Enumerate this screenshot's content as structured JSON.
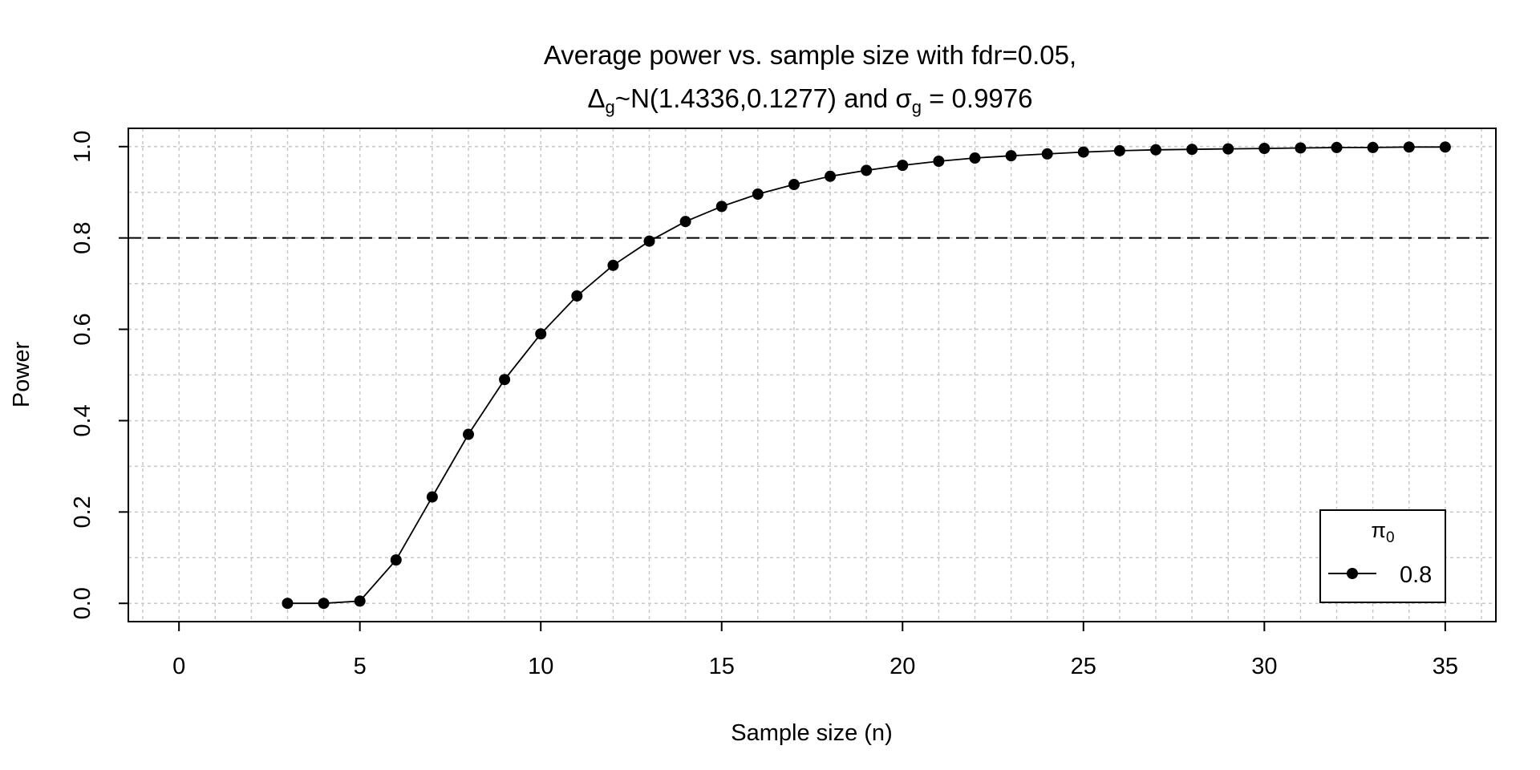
{
  "chart_data": {
    "type": "line",
    "title_line1": "Average power vs. sample size with fdr=0.05,",
    "title_line2": {
      "delta": "Δ",
      "delta_sub": "g",
      "mid": "~N(1.4336,0.1277) and ",
      "sigma": "σ",
      "sigma_sub": "g",
      "tail": " = 0.9976"
    },
    "xlabel": "Sample size (n)",
    "ylabel": "Power",
    "xlim": [
      -1.4,
      36.4
    ],
    "ylim": [
      -0.04,
      1.04
    ],
    "x_ticks": [
      "0",
      "5",
      "10",
      "15",
      "20",
      "25",
      "30",
      "35"
    ],
    "y_ticks": [
      "0.0",
      "0.2",
      "0.4",
      "0.6",
      "0.8",
      "1.0"
    ],
    "grid": true,
    "reference_line": {
      "y": 0.8,
      "style": "dashed"
    },
    "series": [
      {
        "name": "0.8",
        "x": [
          3,
          4,
          5,
          6,
          7,
          8,
          9,
          10,
          11,
          12,
          13,
          14,
          15,
          16,
          17,
          18,
          19,
          20,
          21,
          22,
          23,
          24,
          25,
          26,
          27,
          28,
          29,
          30,
          31,
          32,
          33,
          34,
          35
        ],
        "y": [
          0.0,
          0.0,
          0.005,
          0.095,
          0.233,
          0.37,
          0.49,
          0.59,
          0.673,
          0.74,
          0.793,
          0.836,
          0.869,
          0.896,
          0.917,
          0.935,
          0.948,
          0.959,
          0.968,
          0.975,
          0.98,
          0.984,
          0.988,
          0.991,
          0.993,
          0.994,
          0.995,
          0.996,
          0.997,
          0.998,
          0.998,
          0.999,
          0.999
        ]
      }
    ],
    "legend": {
      "title_symbol": "π",
      "title_sub": "0",
      "placement": "bottom-right",
      "entries": [
        "0.8"
      ]
    }
  }
}
